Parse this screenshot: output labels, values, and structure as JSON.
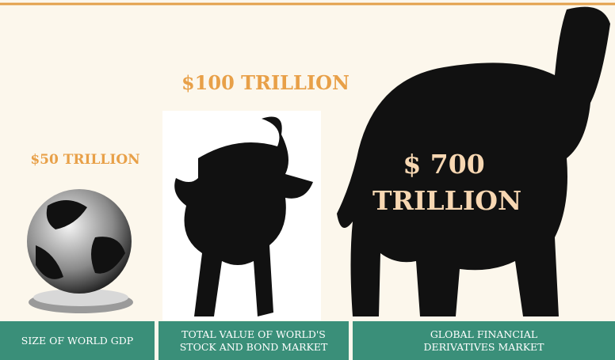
{
  "items": [
    {
      "value": "$50 TRILLION",
      "caption": "SIZE OF WORLD GDP"
    },
    {
      "value": "$100 TRILLION",
      "caption": "TOTAL VALUE OF WORLD'S STOCK AND BOND MARKET"
    },
    {
      "value": "$ 700 TRILLION",
      "caption": "GLOBAL FINANCIAL DERIVATIVES MARKET"
    }
  ]
}
